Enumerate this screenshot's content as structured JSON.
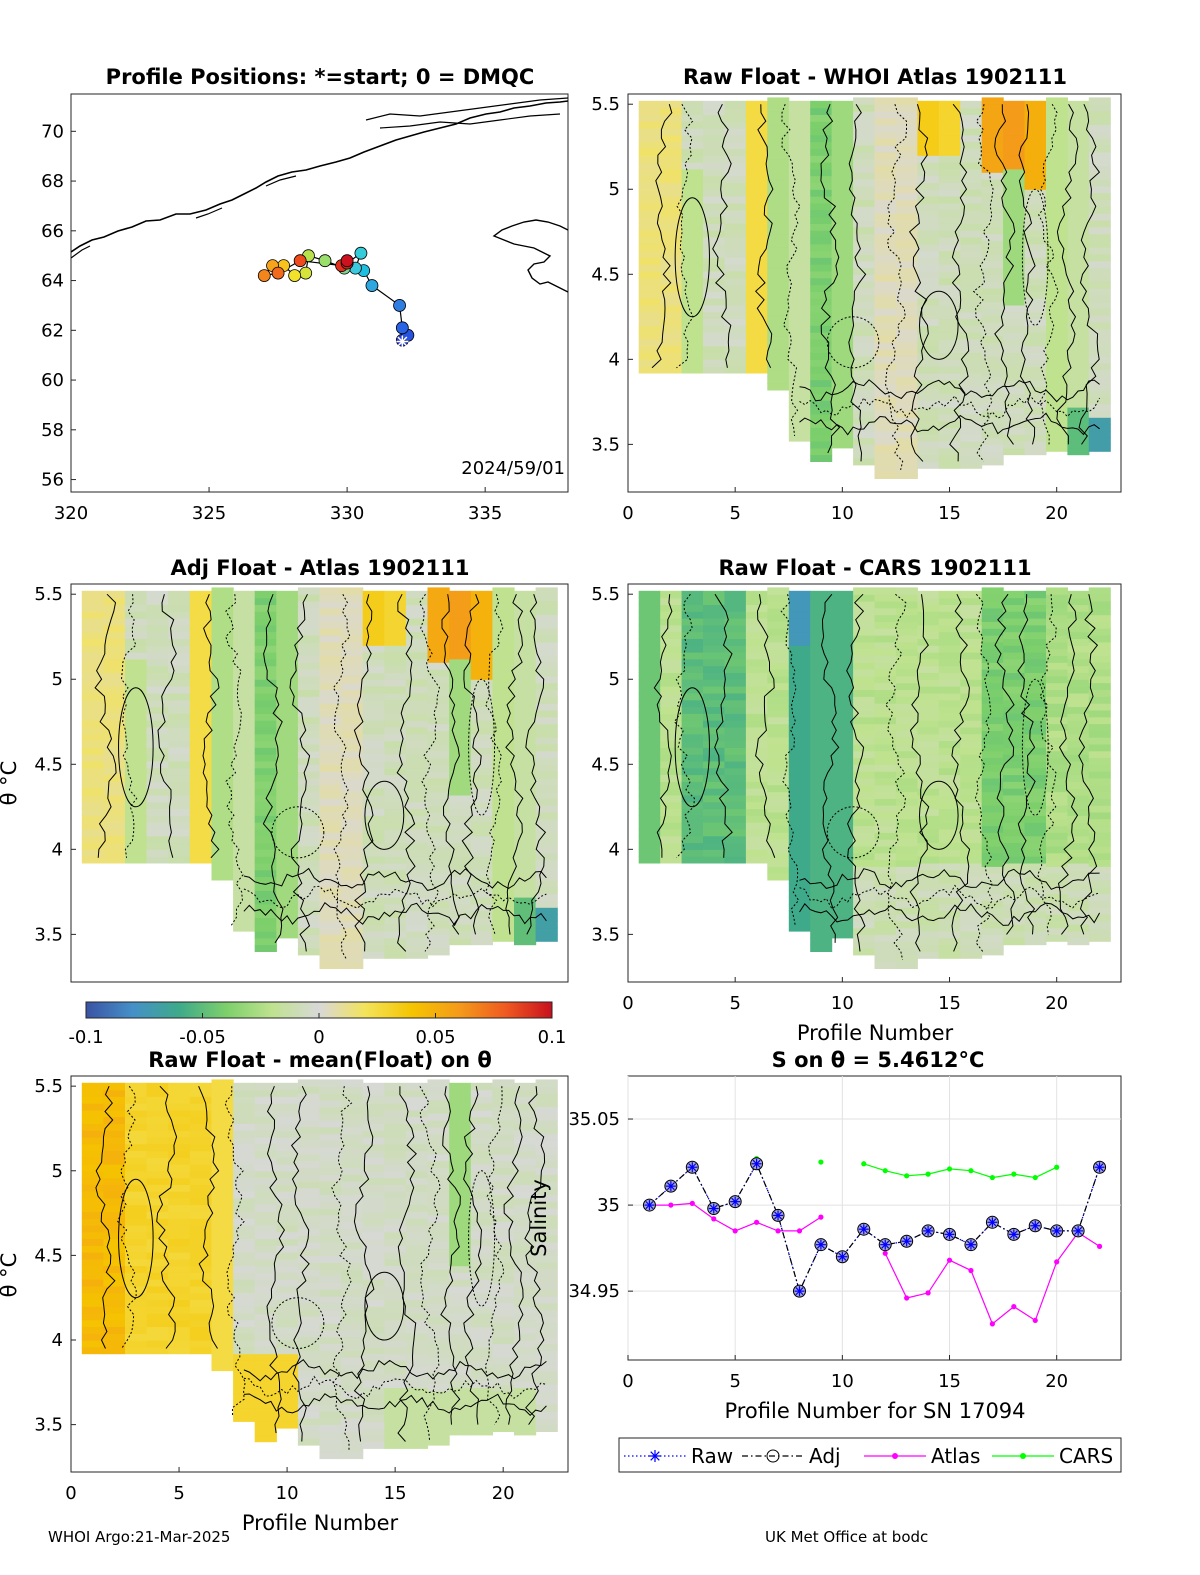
{
  "footer": {
    "left": "WHOI Argo:21-Mar-2025",
    "right": "UK Met Office at bodc"
  },
  "colors": {
    "raw": "#0000ff",
    "adj": "#000000",
    "atlas": "#ff00ff",
    "cars": "#00ff00",
    "coast": "#000000"
  },
  "colorbar": {
    "ticks": [
      "-0.1",
      "-0.05",
      "0",
      "0.05",
      "0.1"
    ],
    "range": [
      -0.1,
      0.1
    ],
    "stops": [
      "#3a53a4",
      "#4590c8",
      "#3eaa8a",
      "#7ccf6b",
      "#bfe28f",
      "#d8d8d8",
      "#f3e35a",
      "#f5c400",
      "#f49b1a",
      "#ef5a20",
      "#c8101e"
    ]
  },
  "chart_data": [
    {
      "type": "scatter",
      "title": "Profile Positions: *=start; 0 = DMQC",
      "annotation": "2024/59/01",
      "xlim": [
        320,
        338
      ],
      "ylim": [
        55.5,
        71.5
      ],
      "xticks": [
        "320",
        "325",
        "330",
        "335"
      ],
      "yticks": [
        "56",
        "58",
        "60",
        "62",
        "64",
        "66",
        "68",
        "70"
      ],
      "x": [
        332.0,
        332.2,
        332.0,
        331.9,
        330.9,
        330.6,
        330.3,
        330.5,
        330.0,
        329.9,
        329.2,
        328.6,
        328.5,
        328.1,
        327.7,
        327.3,
        327.0,
        327.5,
        328.3,
        329.8,
        330.0,
        330.0
      ],
      "y": [
        61.6,
        61.8,
        62.1,
        63.0,
        63.8,
        64.4,
        64.5,
        65.1,
        64.7,
        64.5,
        64.8,
        65.0,
        64.3,
        64.2,
        64.6,
        64.6,
        64.2,
        64.3,
        64.8,
        64.6,
        64.7,
        64.8
      ],
      "marker_colors": [
        "#2a3bd6",
        "#2852e0",
        "#2a64e6",
        "#2f7de0",
        "#2ea6e0",
        "#1fbfe0",
        "#3cc9e0",
        "#35cbd8",
        "#5dd2b0",
        "#7cd88e",
        "#9ade6c",
        "#b7e24c",
        "#d6e43a",
        "#f2e12a",
        "#f8c41c",
        "#f7a31c",
        "#f4851b",
        "#f26a1b",
        "#ef4b1c",
        "#e3301d",
        "#d81f1e",
        "#cc121e"
      ],
      "start": [
        332.0,
        61.55
      ]
    },
    {
      "type": "heatmap",
      "title": "Raw Float - WHOI Atlas  1902111",
      "xlim": [
        0,
        23
      ],
      "ylim": [
        3.22,
        5.56
      ],
      "xticks": [
        "0",
        "5",
        "10",
        "15",
        "20"
      ],
      "yticks": [
        "3.5",
        "4",
        "4.5",
        "5",
        "5.5"
      ],
      "variant": "atlas-raw"
    },
    {
      "type": "heatmap",
      "title": "Adj Float - Atlas  1902111",
      "xlim": [
        0,
        23
      ],
      "ylim": [
        3.22,
        5.56
      ],
      "xticks": [
        "0",
        "5",
        "10",
        "15",
        "20"
      ],
      "yticks": [
        "3.5",
        "4",
        "4.5",
        "5",
        "5.5"
      ],
      "ylabel": "θ °C",
      "variant": "atlas-adj"
    },
    {
      "type": "heatmap",
      "title": "Raw Float - CARS  1902111",
      "xlim": [
        0,
        23
      ],
      "ylim": [
        3.22,
        5.56
      ],
      "xticks": [
        "0",
        "5",
        "10",
        "15",
        "20"
      ],
      "yticks": [
        "3.5",
        "4",
        "4.5",
        "5",
        "5.5"
      ],
      "xlabel": "Profile Number",
      "variant": "cars"
    },
    {
      "type": "heatmap",
      "title": "Raw Float - mean(Float) on θ",
      "xlim": [
        0,
        23
      ],
      "ylim": [
        3.22,
        5.56
      ],
      "xticks": [
        "0",
        "5",
        "10",
        "15",
        "20"
      ],
      "yticks": [
        "3.5",
        "4",
        "4.5",
        "5",
        "5.5"
      ],
      "xlabel": "Profile Number",
      "ylabel": "θ °C",
      "variant": "mean"
    },
    {
      "type": "line",
      "title": "S on θ = 5.4612°C",
      "xlabel": "Profile Number for SN 17094",
      "ylabel": "Salinity",
      "xlim": [
        0,
        23
      ],
      "ylim": [
        34.91,
        35.075
      ],
      "xticks": [
        "0",
        "5",
        "10",
        "15",
        "20"
      ],
      "yticks": [
        "34.95",
        "35",
        "35.05"
      ],
      "ytick_values": [
        34.95,
        35.0,
        35.05
      ],
      "legend": [
        "Raw",
        "Adj",
        "Atlas",
        "CARS"
      ],
      "x": [
        1,
        2,
        3,
        4,
        5,
        6,
        7,
        8,
        9,
        10,
        11,
        12,
        13,
        14,
        15,
        16,
        17,
        18,
        19,
        20,
        21,
        22
      ],
      "series": [
        {
          "name": "Raw",
          "values": [
            35.0,
            35.011,
            35.022,
            34.998,
            35.002,
            35.024,
            34.994,
            34.95,
            34.977,
            34.97,
            34.986,
            34.977,
            34.979,
            34.985,
            34.983,
            34.977,
            34.99,
            34.983,
            34.988,
            34.985,
            34.985,
            35.022
          ]
        },
        {
          "name": "Adj",
          "values": [
            35.0,
            35.011,
            35.022,
            34.998,
            35.002,
            35.024,
            34.994,
            34.95,
            34.977,
            34.97,
            34.986,
            34.977,
            34.979,
            34.985,
            34.983,
            34.977,
            34.99,
            34.983,
            34.988,
            34.985,
            34.985,
            35.022
          ]
        },
        {
          "name": "Atlas",
          "values": [
            35.0,
            35.0,
            35.001,
            34.992,
            34.985,
            34.99,
            34.985,
            34.985,
            34.993,
            null,
            null,
            34.972,
            34.946,
            34.949,
            34.968,
            34.962,
            34.931,
            34.941,
            34.933,
            34.967,
            34.984,
            34.976
          ]
        },
        {
          "name": "CARS",
          "values": [
            null,
            null,
            null,
            null,
            null,
            35.027,
            null,
            null,
            35.025,
            null,
            35.024,
            35.02,
            35.017,
            35.018,
            35.021,
            35.02,
            35.016,
            35.018,
            35.016,
            35.022,
            null,
            35.023
          ]
        }
      ]
    }
  ]
}
